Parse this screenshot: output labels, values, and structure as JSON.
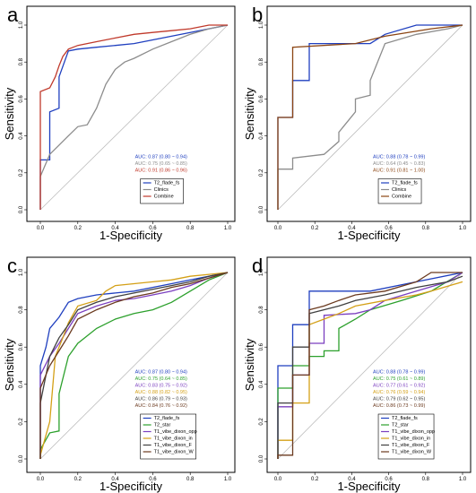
{
  "chart_data": [
    {
      "panel": "a",
      "type": "line",
      "xlabel": "1-Specificity",
      "ylabel": "Sensitivity",
      "xlim": [
        0,
        1
      ],
      "ylim": [
        0,
        1
      ],
      "ticks": [
        "0.0",
        "0.2",
        "0.4",
        "0.6",
        "0.8",
        "1.0"
      ],
      "series": [
        {
          "name": "T2_flade_fs",
          "color": "#1f3fbf",
          "auc": "AUC: 0.87 (0.80 ~ 0.94)",
          "x": [
            0,
            0,
            0.05,
            0.05,
            0.1,
            0.1,
            0.15,
            0.2,
            0.3,
            0.4,
            0.5,
            0.6,
            0.7,
            0.8,
            0.9,
            1.0
          ],
          "y": [
            0,
            0.27,
            0.27,
            0.53,
            0.55,
            0.72,
            0.86,
            0.87,
            0.88,
            0.89,
            0.9,
            0.92,
            0.94,
            0.96,
            0.98,
            1.0
          ]
        },
        {
          "name": "Clinics",
          "color": "#8c8c8c",
          "auc": "AUC: 0.75 (0.65 ~ 0.85)",
          "x": [
            0,
            0,
            0.05,
            0.1,
            0.15,
            0.2,
            0.25,
            0.3,
            0.35,
            0.4,
            0.45,
            0.5,
            0.6,
            0.7,
            0.8,
            0.9,
            1.0
          ],
          "y": [
            0,
            0.18,
            0.3,
            0.35,
            0.4,
            0.45,
            0.46,
            0.55,
            0.68,
            0.76,
            0.8,
            0.82,
            0.87,
            0.91,
            0.95,
            0.98,
            1.0
          ]
        },
        {
          "name": "Combine",
          "color": "#c0392b",
          "auc": "AUC: 0.91 (0.86 ~ 0.96)",
          "x": [
            0,
            0,
            0.05,
            0.08,
            0.1,
            0.12,
            0.15,
            0.2,
            0.3,
            0.4,
            0.5,
            0.6,
            0.7,
            0.8,
            0.9,
            1.0
          ],
          "y": [
            0,
            0.64,
            0.66,
            0.72,
            0.78,
            0.83,
            0.87,
            0.89,
            0.91,
            0.93,
            0.95,
            0.96,
            0.97,
            0.98,
            1.0,
            1.0
          ]
        }
      ],
      "legend_position": "bottom-right"
    },
    {
      "panel": "b",
      "type": "line",
      "xlabel": "1-Specificity",
      "ylabel": "Sensitivity",
      "xlim": [
        0,
        1
      ],
      "ylim": [
        0,
        1
      ],
      "ticks": [
        "0.0",
        "0.2",
        "0.4",
        "0.6",
        "0.8",
        "1.0"
      ],
      "series": [
        {
          "name": "T2_flade_fs",
          "color": "#1f3fbf",
          "auc": "AUC: 0.88 (0.78 ~ 0.99)",
          "x": [
            0,
            0,
            0.08,
            0.08,
            0.17,
            0.17,
            0.5,
            0.58,
            0.75,
            1.0
          ],
          "y": [
            0,
            0.5,
            0.5,
            0.7,
            0.7,
            0.9,
            0.9,
            0.95,
            1.0,
            1.0
          ]
        },
        {
          "name": "Clinics",
          "color": "#8c8c8c",
          "auc": "AUC: 0.64 (0.45 ~ 0.83)",
          "x": [
            0,
            0,
            0.08,
            0.08,
            0.25,
            0.33,
            0.33,
            0.42,
            0.42,
            0.5,
            0.5,
            0.58,
            0.75,
            0.92,
            1.0
          ],
          "y": [
            0,
            0.22,
            0.22,
            0.28,
            0.3,
            0.37,
            0.42,
            0.53,
            0.6,
            0.62,
            0.7,
            0.9,
            0.95,
            0.98,
            1.0
          ]
        },
        {
          "name": "Combine",
          "color": "#8b4513",
          "auc": "AUC: 0.91 (0.81 ~ 1.00)",
          "x": [
            0,
            0,
            0.08,
            0.08,
            0.42,
            0.58,
            0.83,
            1.0
          ],
          "y": [
            0,
            0.5,
            0.5,
            0.88,
            0.9,
            0.94,
            0.98,
            1.0
          ]
        }
      ],
      "legend_position": "bottom-right"
    },
    {
      "panel": "c",
      "type": "line",
      "xlabel": "1-Specificity",
      "ylabel": "Sensitivity",
      "xlim": [
        0,
        1
      ],
      "ylim": [
        0,
        1
      ],
      "ticks": [
        "0.0",
        "0.2",
        "0.4",
        "0.6",
        "0.8",
        "1.0"
      ],
      "series": [
        {
          "name": "T2_flade_fs",
          "color": "#1f3fbf",
          "auc": "AUC: 0.87 (0.80 ~ 0.94)",
          "x": [
            0,
            0,
            0.03,
            0.05,
            0.1,
            0.15,
            0.2,
            0.3,
            0.4,
            0.5,
            0.6,
            0.7,
            0.8,
            0.9,
            1.0
          ],
          "y": [
            0,
            0.5,
            0.6,
            0.7,
            0.76,
            0.84,
            0.86,
            0.88,
            0.89,
            0.9,
            0.92,
            0.94,
            0.96,
            0.98,
            1.0
          ]
        },
        {
          "name": "T2_star",
          "color": "#2ca02c",
          "auc": "AUC: 0.75 (0.64 ~ 0.85)",
          "x": [
            0,
            0,
            0.05,
            0.1,
            0.1,
            0.15,
            0.2,
            0.3,
            0.4,
            0.5,
            0.6,
            0.7,
            0.8,
            0.9,
            1.0
          ],
          "y": [
            0,
            0.05,
            0.14,
            0.15,
            0.35,
            0.55,
            0.62,
            0.7,
            0.75,
            0.78,
            0.8,
            0.84,
            0.9,
            0.96,
            1.0
          ]
        },
        {
          "name": "T1_vibe_dixon_opp",
          "color": "#7b3fbf",
          "auc": "AUC: 0.83 (0.75 ~ 0.92)",
          "x": [
            0,
            0,
            0.05,
            0.1,
            0.15,
            0.2,
            0.3,
            0.4,
            0.5,
            0.6,
            0.7,
            0.8,
            0.9,
            1.0
          ],
          "y": [
            0,
            0.45,
            0.55,
            0.62,
            0.7,
            0.78,
            0.82,
            0.85,
            0.86,
            0.88,
            0.9,
            0.93,
            0.97,
            1.0
          ]
        },
        {
          "name": "T1_vibe_dixon_in",
          "color": "#d4a017",
          "auc": "AUC: 0.88 (0.82 ~ 0.95)",
          "x": [
            0,
            0,
            0.05,
            0.08,
            0.12,
            0.15,
            0.2,
            0.3,
            0.35,
            0.4,
            0.5,
            0.6,
            0.7,
            0.8,
            0.9,
            1.0
          ],
          "y": [
            0,
            0.02,
            0.2,
            0.55,
            0.65,
            0.73,
            0.82,
            0.85,
            0.9,
            0.93,
            0.94,
            0.95,
            0.96,
            0.98,
            0.99,
            1.0
          ]
        },
        {
          "name": "T1_vibe_dixon_F",
          "color": "#404040",
          "auc": "AUC: 0.86 (0.79 ~ 0.93)",
          "x": [
            0,
            0,
            0.05,
            0.1,
            0.15,
            0.2,
            0.3,
            0.4,
            0.5,
            0.6,
            0.7,
            0.8,
            0.9,
            1.0
          ],
          "y": [
            0,
            0.3,
            0.55,
            0.65,
            0.72,
            0.8,
            0.84,
            0.87,
            0.89,
            0.91,
            0.93,
            0.95,
            0.98,
            1.0
          ]
        },
        {
          "name": "T1_vibe_dixon_W",
          "color": "#6b3a1f",
          "auc": "AUC: 0.84 (0.76 ~ 0.92)",
          "x": [
            0,
            0,
            0.05,
            0.1,
            0.15,
            0.2,
            0.3,
            0.4,
            0.5,
            0.6,
            0.7,
            0.8,
            0.9,
            1.0
          ],
          "y": [
            0,
            0.38,
            0.5,
            0.58,
            0.66,
            0.75,
            0.8,
            0.84,
            0.87,
            0.89,
            0.92,
            0.94,
            0.97,
            1.0
          ]
        }
      ],
      "legend_position": "bottom-right"
    },
    {
      "panel": "d",
      "type": "line",
      "xlabel": "1-Specificity",
      "ylabel": "Sensitivity",
      "xlim": [
        0,
        1
      ],
      "ylim": [
        0,
        1
      ],
      "ticks": [
        "0.0",
        "0.2",
        "0.4",
        "0.6",
        "0.8",
        "1.0"
      ],
      "series": [
        {
          "name": "T2_flade_fs",
          "color": "#1f3fbf",
          "auc": "AUC: 0.88 (0.78 ~ 0.99)",
          "x": [
            0,
            0,
            0.08,
            0.08,
            0.17,
            0.17,
            0.5,
            0.75,
            1.0
          ],
          "y": [
            0,
            0.5,
            0.5,
            0.72,
            0.72,
            0.9,
            0.9,
            0.95,
            1.0
          ]
        },
        {
          "name": "T2_star",
          "color": "#2ca02c",
          "auc": "AUC: 0.75 (0.61 ~ 0.89)",
          "x": [
            0,
            0,
            0.08,
            0.08,
            0.17,
            0.17,
            0.25,
            0.25,
            0.33,
            0.33,
            0.42,
            0.5,
            0.67,
            0.83,
            1.0
          ],
          "y": [
            0,
            0.38,
            0.38,
            0.5,
            0.5,
            0.55,
            0.55,
            0.58,
            0.58,
            0.7,
            0.75,
            0.8,
            0.85,
            0.9,
            1.0
          ]
        },
        {
          "name": "T1_vibe_dixon_opp",
          "color": "#7b3fbf",
          "auc": "AUC: 0.77 (0.61 ~ 0.92)",
          "x": [
            0,
            0,
            0.08,
            0.08,
            0.17,
            0.17,
            0.25,
            0.25,
            0.42,
            0.5,
            0.58,
            0.75,
            0.92,
            1.0
          ],
          "y": [
            0,
            0.28,
            0.28,
            0.45,
            0.45,
            0.62,
            0.62,
            0.77,
            0.78,
            0.8,
            0.85,
            0.9,
            0.95,
            1.0
          ]
        },
        {
          "name": "T1_vibe_dixon_in",
          "color": "#d4a017",
          "auc": "AUC: 0.76 (0.59 ~ 0.94)",
          "x": [
            0,
            0,
            0.08,
            0.08,
            0.17,
            0.17,
            0.25,
            0.33,
            0.42,
            0.58,
            0.75,
            0.83,
            1.0
          ],
          "y": [
            0,
            0.1,
            0.1,
            0.3,
            0.3,
            0.72,
            0.75,
            0.78,
            0.82,
            0.85,
            0.88,
            0.9,
            0.95
          ]
        },
        {
          "name": "T1_vibe_dixon_F",
          "color": "#404040",
          "auc": "AUC: 0.79 (0.62 ~ 0.95)",
          "x": [
            0,
            0,
            0.08,
            0.08,
            0.17,
            0.17,
            0.33,
            0.42,
            0.58,
            0.75,
            0.92,
            1.0
          ],
          "y": [
            0,
            0.3,
            0.3,
            0.6,
            0.6,
            0.78,
            0.82,
            0.85,
            0.88,
            0.92,
            0.95,
            0.98
          ]
        },
        {
          "name": "T1_vibe_dixon_W",
          "color": "#6b3a1f",
          "auc": "AUC: 0.86 (0.73 ~ 0.99)",
          "x": [
            0,
            0,
            0.08,
            0.08,
            0.17,
            0.17,
            0.25,
            0.33,
            0.42,
            0.58,
            0.75,
            0.83,
            1.0
          ],
          "y": [
            0,
            0.02,
            0.02,
            0.45,
            0.45,
            0.8,
            0.82,
            0.85,
            0.88,
            0.9,
            0.95,
            1.0,
            1.0
          ]
        }
      ],
      "legend_position": "bottom-right"
    }
  ]
}
